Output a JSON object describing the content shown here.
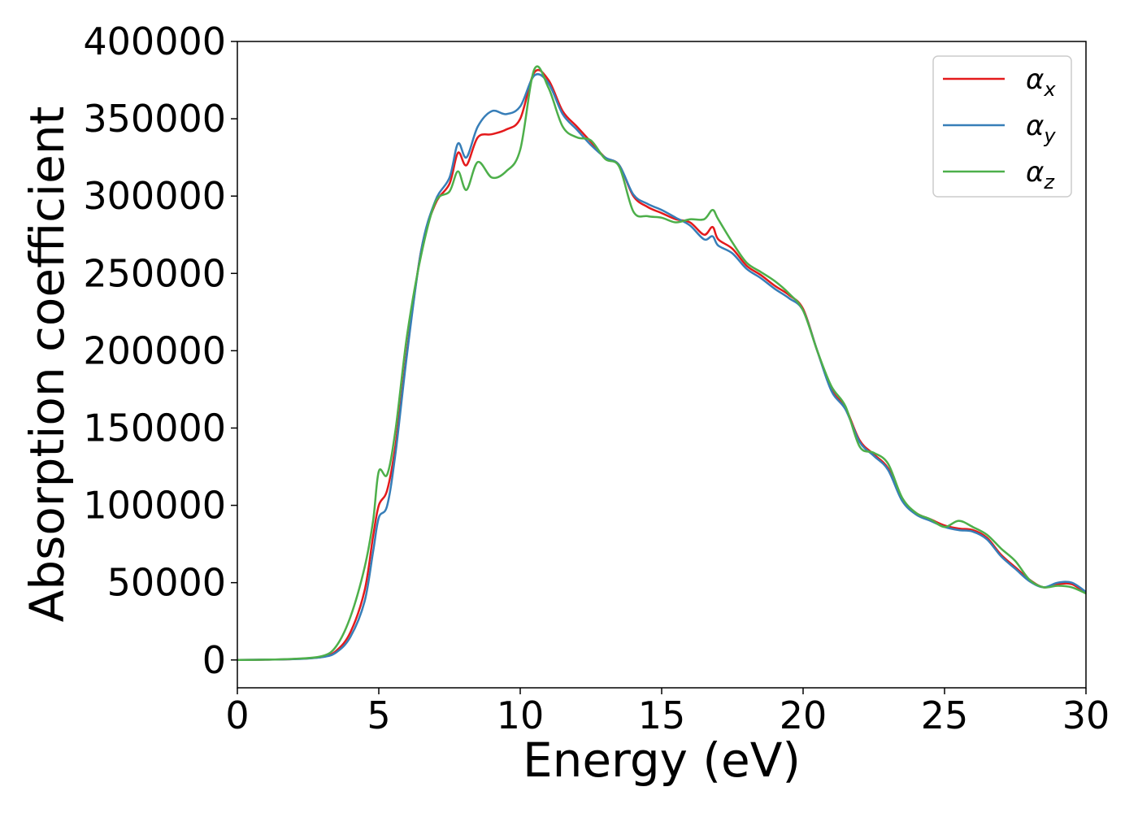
{
  "chart_data": {
    "type": "line",
    "title": "",
    "xlabel": "Energy (eV)",
    "ylabel": "Absorption coefficient",
    "xlim": [
      0,
      30
    ],
    "ylim": [
      -18000,
      400000
    ],
    "xticks": [
      0,
      5,
      10,
      15,
      20,
      25,
      30
    ],
    "yticks": [
      0,
      50000,
      100000,
      150000,
      200000,
      250000,
      300000,
      350000,
      400000
    ],
    "grid": false,
    "legend_position": "top-right",
    "series": [
      {
        "name": "αx",
        "base": "α",
        "sub": "x",
        "color": "#e41a1c",
        "points": [
          [
            0,
            0
          ],
          [
            1,
            200
          ],
          [
            2,
            600
          ],
          [
            3,
            2000
          ],
          [
            3.5,
            6000
          ],
          [
            4,
            18000
          ],
          [
            4.5,
            45000
          ],
          [
            4.8,
            80000
          ],
          [
            5,
            100000
          ],
          [
            5.3,
            110000
          ],
          [
            5.6,
            140000
          ],
          [
            6,
            200000
          ],
          [
            6.5,
            265000
          ],
          [
            7,
            295000
          ],
          [
            7.5,
            308000
          ],
          [
            7.8,
            328000
          ],
          [
            8.1,
            320000
          ],
          [
            8.5,
            338000
          ],
          [
            9,
            340000
          ],
          [
            9.5,
            343000
          ],
          [
            10,
            350000
          ],
          [
            10.5,
            380000
          ],
          [
            11,
            375000
          ],
          [
            11.5,
            355000
          ],
          [
            12,
            345000
          ],
          [
            12.5,
            335000
          ],
          [
            13,
            325000
          ],
          [
            13.5,
            320000
          ],
          [
            14,
            300000
          ],
          [
            14.5,
            293000
          ],
          [
            15,
            289000
          ],
          [
            15.5,
            285000
          ],
          [
            16,
            283000
          ],
          [
            16.5,
            275000
          ],
          [
            16.8,
            280000
          ],
          [
            17,
            272000
          ],
          [
            17.5,
            266000
          ],
          [
            18,
            255000
          ],
          [
            18.5,
            249000
          ],
          [
            19,
            242000
          ],
          [
            19.5,
            236000
          ],
          [
            20,
            227000
          ],
          [
            20.5,
            200000
          ],
          [
            21,
            175000
          ],
          [
            21.5,
            163000
          ],
          [
            22,
            142000
          ],
          [
            22.5,
            133000
          ],
          [
            23,
            124000
          ],
          [
            23.5,
            104000
          ],
          [
            24,
            95000
          ],
          [
            24.5,
            91000
          ],
          [
            25,
            87000
          ],
          [
            25.5,
            85000
          ],
          [
            26,
            84000
          ],
          [
            26.5,
            79000
          ],
          [
            27,
            68000
          ],
          [
            27.5,
            60000
          ],
          [
            28,
            52000
          ],
          [
            28.5,
            47000
          ],
          [
            29,
            49000
          ],
          [
            29.5,
            49000
          ],
          [
            30,
            43000
          ]
        ]
      },
      {
        "name": "αy",
        "base": "α",
        "sub": "y",
        "color": "#377eb8",
        "points": [
          [
            0,
            0
          ],
          [
            1,
            200
          ],
          [
            2,
            500
          ],
          [
            3,
            1800
          ],
          [
            3.5,
            5000
          ],
          [
            4,
            15000
          ],
          [
            4.5,
            38000
          ],
          [
            4.8,
            70000
          ],
          [
            5,
            92000
          ],
          [
            5.3,
            100000
          ],
          [
            5.6,
            135000
          ],
          [
            6,
            198000
          ],
          [
            6.5,
            265000
          ],
          [
            7,
            297000
          ],
          [
            7.5,
            312000
          ],
          [
            7.8,
            334000
          ],
          [
            8.1,
            325000
          ],
          [
            8.5,
            345000
          ],
          [
            9,
            355000
          ],
          [
            9.5,
            353000
          ],
          [
            10,
            358000
          ],
          [
            10.5,
            378000
          ],
          [
            11,
            373000
          ],
          [
            11.5,
            353000
          ],
          [
            12,
            343000
          ],
          [
            12.5,
            333000
          ],
          [
            13,
            325000
          ],
          [
            13.5,
            320000
          ],
          [
            14,
            301000
          ],
          [
            14.5,
            295000
          ],
          [
            15,
            291000
          ],
          [
            15.5,
            286000
          ],
          [
            16,
            281000
          ],
          [
            16.5,
            272000
          ],
          [
            16.8,
            274000
          ],
          [
            17,
            268000
          ],
          [
            17.5,
            263000
          ],
          [
            18,
            253000
          ],
          [
            18.5,
            247000
          ],
          [
            19,
            240000
          ],
          [
            19.5,
            234000
          ],
          [
            20,
            226000
          ],
          [
            20.5,
            200000
          ],
          [
            21,
            174000
          ],
          [
            21.5,
            162000
          ],
          [
            22,
            141000
          ],
          [
            22.5,
            132000
          ],
          [
            23,
            123000
          ],
          [
            23.5,
            103000
          ],
          [
            24,
            94000
          ],
          [
            24.5,
            90000
          ],
          [
            25,
            86000
          ],
          [
            25.5,
            84000
          ],
          [
            26,
            83000
          ],
          [
            26.5,
            78000
          ],
          [
            27,
            67000
          ],
          [
            27.5,
            59000
          ],
          [
            28,
            51000
          ],
          [
            28.5,
            47000
          ],
          [
            29,
            50000
          ],
          [
            29.5,
            50000
          ],
          [
            30,
            44000
          ]
        ]
      },
      {
        "name": "αz",
        "base": "α",
        "sub": "z",
        "color": "#4daf4a",
        "points": [
          [
            0,
            0
          ],
          [
            1,
            200
          ],
          [
            2,
            700
          ],
          [
            3,
            2500
          ],
          [
            3.5,
            9000
          ],
          [
            4,
            28000
          ],
          [
            4.5,
            60000
          ],
          [
            4.8,
            90000
          ],
          [
            5,
            122000
          ],
          [
            5.3,
            120000
          ],
          [
            5.6,
            150000
          ],
          [
            6,
            210000
          ],
          [
            6.5,
            262000
          ],
          [
            7,
            296000
          ],
          [
            7.5,
            303000
          ],
          [
            7.8,
            316000
          ],
          [
            8.1,
            304000
          ],
          [
            8.5,
            322000
          ],
          [
            9,
            312000
          ],
          [
            9.5,
            316000
          ],
          [
            10,
            330000
          ],
          [
            10.5,
            382000
          ],
          [
            11,
            370000
          ],
          [
            11.5,
            345000
          ],
          [
            12,
            338000
          ],
          [
            12.5,
            336000
          ],
          [
            13,
            324000
          ],
          [
            13.5,
            319000
          ],
          [
            14,
            290000
          ],
          [
            14.5,
            287000
          ],
          [
            15,
            286000
          ],
          [
            15.5,
            283000
          ],
          [
            16,
            285000
          ],
          [
            16.5,
            285000
          ],
          [
            16.8,
            291000
          ],
          [
            17,
            285000
          ],
          [
            17.5,
            270000
          ],
          [
            18,
            257000
          ],
          [
            18.5,
            251000
          ],
          [
            19,
            245000
          ],
          [
            19.5,
            237000
          ],
          [
            20,
            226000
          ],
          [
            20.5,
            200000
          ],
          [
            21,
            177000
          ],
          [
            21.5,
            164000
          ],
          [
            22,
            138000
          ],
          [
            22.5,
            134000
          ],
          [
            23,
            127000
          ],
          [
            23.5,
            105000
          ],
          [
            24,
            95000
          ],
          [
            24.5,
            91000
          ],
          [
            25,
            86000
          ],
          [
            25.5,
            90000
          ],
          [
            26,
            86000
          ],
          [
            26.5,
            81000
          ],
          [
            27,
            72000
          ],
          [
            27.5,
            64000
          ],
          [
            28,
            52000
          ],
          [
            28.5,
            47000
          ],
          [
            29,
            48000
          ],
          [
            29.5,
            47000
          ],
          [
            30,
            43000
          ]
        ]
      }
    ]
  }
}
